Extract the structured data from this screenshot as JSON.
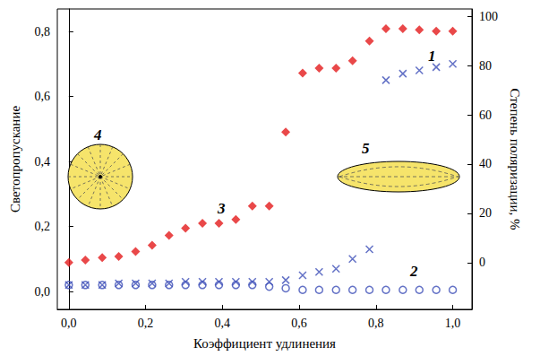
{
  "chart_data": {
    "type": "scatter",
    "x_label": "Коэффициент удлинения",
    "y_label": "Светопропускание",
    "y2_label": "Степень поляризации, %",
    "xlim": [
      -0.03,
      1.05
    ],
    "xticks": [
      {
        "value": 0,
        "label": "0,0"
      },
      {
        "value": 0.2,
        "label": "0,2"
      },
      {
        "value": 0.4,
        "label": "0,4"
      },
      {
        "value": 0.6,
        "label": "0,6"
      },
      {
        "value": 0.8,
        "label": "0,8"
      },
      {
        "value": 1,
        "label": "1,0"
      }
    ],
    "ylim": [
      -0.055,
      0.869
    ],
    "yticks": [
      {
        "value": 0,
        "label": "0,0"
      },
      {
        "value": 0.2,
        "label": "0,2"
      },
      {
        "value": 0.4,
        "label": "0,4"
      },
      {
        "value": 0.6,
        "label": "0,6"
      },
      {
        "value": 0.8,
        "label": "0,8"
      }
    ],
    "y2lim": [
      -19,
      103
    ],
    "y2ticks": [
      0,
      20,
      40,
      60,
      80,
      100
    ],
    "grid": false,
    "annotations": [
      "4",
      "5"
    ],
    "x": [
      0,
      0.043,
      0.087,
      0.13,
      0.174,
      0.217,
      0.261,
      0.304,
      0.348,
      0.391,
      0.435,
      0.478,
      0.522,
      0.565,
      0.609,
      0.652,
      0.696,
      0.739,
      0.783,
      0.826,
      0.87,
      0.913,
      0.957,
      1.0
    ],
    "series": [
      {
        "name": "1",
        "color": "#3d4fb8",
        "marker": "x",
        "values": [
          0.02,
          0.02,
          0.02,
          0.025,
          0.025,
          0.025,
          0.025,
          0.03,
          0.03,
          0.03,
          0.03,
          0.03,
          0.03,
          0.035,
          0.05,
          0.06,
          0.07,
          0.1,
          0.13,
          0.65,
          0.67,
          0.68,
          0.69,
          0.7
        ]
      },
      {
        "name": "2",
        "color": "#3d4fb8",
        "marker": "circle",
        "values": [
          0.02,
          0.02,
          0.02,
          0.02,
          0.02,
          0.02,
          0.02,
          0.02,
          0.02,
          0.02,
          0.02,
          0.02,
          0.015,
          0.01,
          0.005,
          0.005,
          0.005,
          0.005,
          0.005,
          0.005,
          0.005,
          0.005,
          0.005,
          0.005
        ]
      },
      {
        "name": "3",
        "color": "#e31a1c",
        "marker": "diamond",
        "axis": "y2",
        "values": [
          0,
          1,
          2,
          2.5,
          4.5,
          7,
          11,
          14,
          16,
          16,
          17.5,
          23,
          23,
          53,
          77,
          79,
          79,
          82,
          90,
          95,
          95,
          94.5,
          94,
          94
        ]
      }
    ]
  }
}
